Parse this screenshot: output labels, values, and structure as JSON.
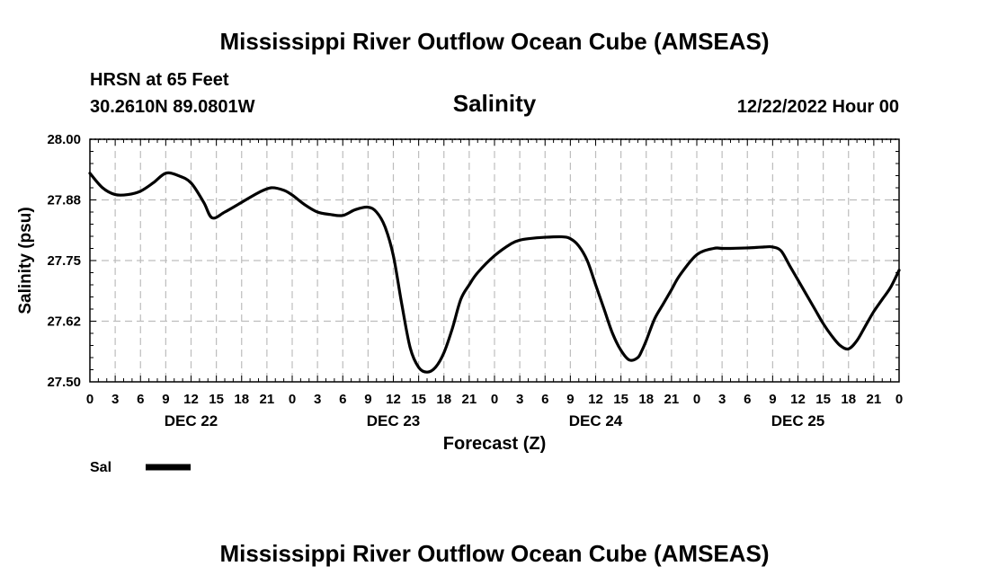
{
  "header": {
    "title": "Mississippi River Outflow Ocean Cube (AMSEAS)",
    "station": "HRSN at 65 Feet",
    "coords": "30.2610N  89.0801W",
    "parameter": "Salinity",
    "datetime": "12/22/2022 Hour 00"
  },
  "footer": {
    "title": "Mississippi River Outflow Ocean Cube (AMSEAS)"
  },
  "legend": {
    "label": "Sal",
    "color": "#000000"
  },
  "chart_data": {
    "type": "line",
    "title": "Salinity",
    "xlabel": "Forecast (Z)",
    "ylabel": "Salinity (psu)",
    "xlim": [
      0,
      96
    ],
    "ylim": [
      27.5,
      28.0
    ],
    "yticks": [
      "28.00",
      "27.88",
      "27.75",
      "27.62",
      "27.50"
    ],
    "ytick_values": [
      28.0,
      27.875,
      27.75,
      27.625,
      27.5
    ],
    "xtick_labels": [
      "0",
      "3",
      "6",
      "9",
      "12",
      "15",
      "18",
      "21",
      "0",
      "3",
      "6",
      "9",
      "12",
      "15",
      "18",
      "21",
      "0",
      "3",
      "6",
      "9",
      "12",
      "15",
      "18",
      "21",
      "0",
      "3",
      "6",
      "9",
      "12",
      "15",
      "18",
      "21",
      "0"
    ],
    "day_labels": [
      {
        "label": "DEC 22",
        "hour": 12
      },
      {
        "label": "DEC 23",
        "hour": 36
      },
      {
        "label": "DEC 24",
        "hour": 60
      },
      {
        "label": "DEC 25",
        "hour": 84
      }
    ],
    "grid": true,
    "series": [
      {
        "name": "Sal",
        "color": "#000000",
        "x": [
          0,
          1.5,
          3,
          4.5,
          6,
          7.5,
          9,
          10.5,
          12,
          13.5,
          14.5,
          16,
          18,
          20,
          21.5,
          23,
          24,
          25.5,
          27,
          28.5,
          30,
          31.5,
          33,
          34,
          35,
          36,
          37,
          38,
          39,
          40,
          41,
          42,
          43,
          44,
          45,
          46,
          48,
          50,
          51,
          52,
          54,
          56,
          57,
          58,
          59,
          60,
          61,
          62,
          63,
          64,
          65,
          65.5,
          66,
          67,
          68,
          69,
          70,
          72,
          74,
          75,
          76,
          78,
          80,
          81,
          82,
          83,
          84,
          85,
          86,
          87,
          88,
          89,
          90,
          91,
          92,
          93,
          94,
          95,
          96
        ],
        "values": [
          27.93,
          27.9,
          27.886,
          27.886,
          27.893,
          27.91,
          27.93,
          27.925,
          27.91,
          27.87,
          27.838,
          27.85,
          27.87,
          27.89,
          27.9,
          27.895,
          27.885,
          27.865,
          27.85,
          27.845,
          27.843,
          27.855,
          27.86,
          27.85,
          27.82,
          27.76,
          27.66,
          27.57,
          27.53,
          27.52,
          27.53,
          27.56,
          27.61,
          27.67,
          27.7,
          27.725,
          27.76,
          27.785,
          27.792,
          27.795,
          27.798,
          27.799,
          27.795,
          27.78,
          27.75,
          27.7,
          27.65,
          27.6,
          27.565,
          27.545,
          27.55,
          27.565,
          27.585,
          27.63,
          27.66,
          27.69,
          27.72,
          27.762,
          27.775,
          27.775,
          27.775,
          27.776,
          27.778,
          27.778,
          27.77,
          27.74,
          27.71,
          27.68,
          27.65,
          27.62,
          27.595,
          27.575,
          27.568,
          27.585,
          27.615,
          27.645,
          27.67,
          27.695,
          27.73
        ]
      }
    ]
  }
}
